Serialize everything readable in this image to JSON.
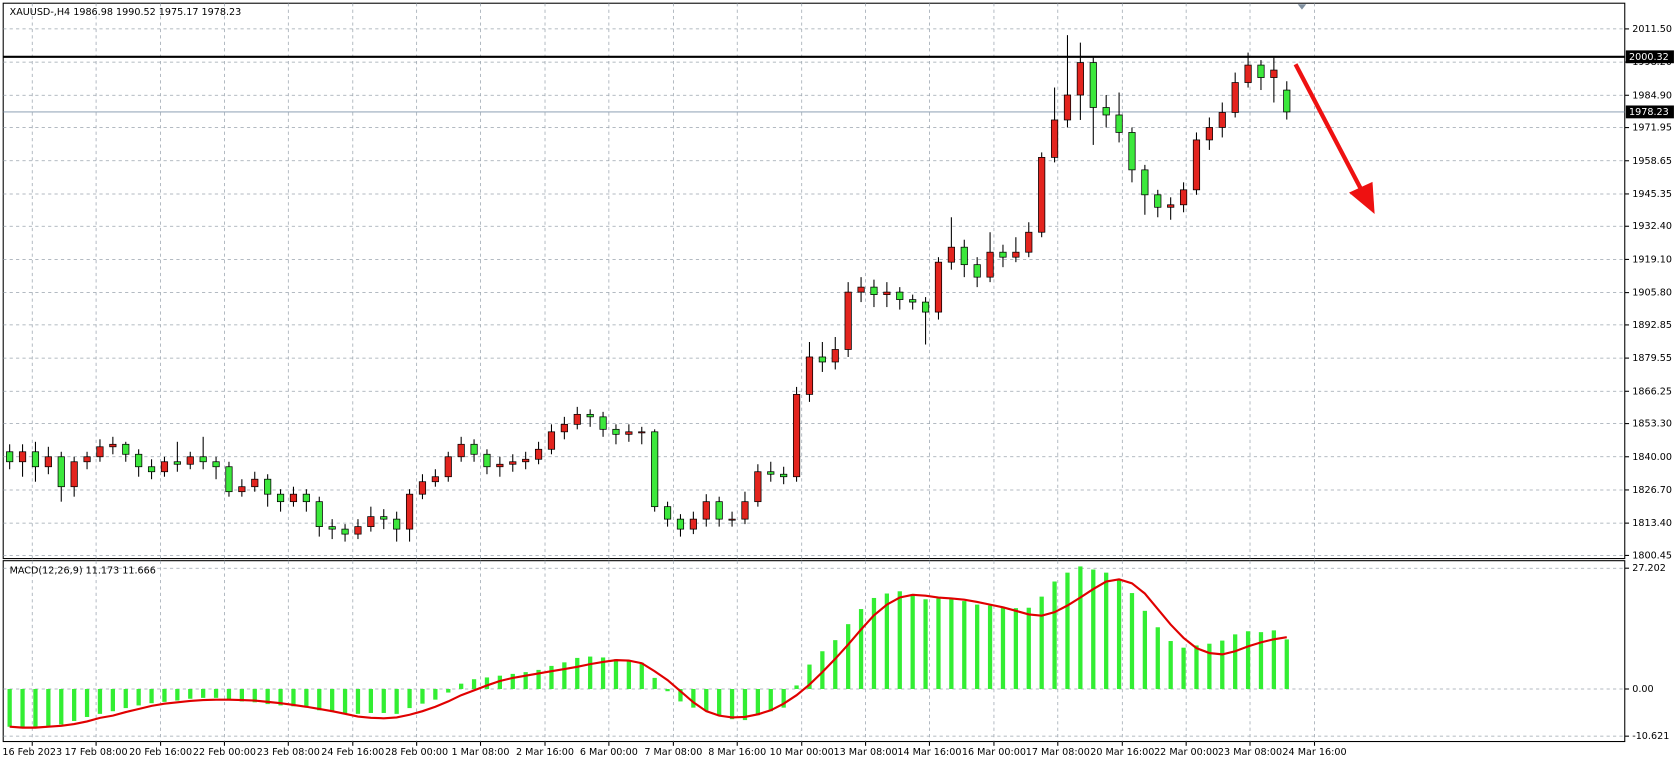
{
  "chart_data": [
    {
      "type": "candlestick",
      "title": "XAUUSD-,H4  1986.98 1990.52 1975.17 1978.23",
      "open": [
        1842,
        1838,
        1842,
        1836,
        1840,
        1828,
        1838,
        1840,
        1844,
        1845,
        1841,
        1836,
        1834,
        1838,
        1837,
        1840,
        1838,
        1836,
        1826,
        1828,
        1831,
        1825,
        1822,
        1825,
        1822,
        1812,
        1811,
        1809,
        1812,
        1816,
        1815,
        1811,
        1825,
        1830,
        1832,
        1840,
        1845,
        1841,
        1836,
        1837,
        1838,
        1839,
        1843,
        1850,
        1853,
        1857,
        1856,
        1851,
        1849,
        1850,
        1850,
        1820,
        1815,
        1811,
        1815,
        1822,
        1815,
        1815,
        1822,
        1834,
        1833,
        1832,
        1865,
        1880,
        1878,
        1883,
        1906,
        1908,
        1905,
        1906,
        1903,
        1902,
        1898,
        1918,
        1924,
        1917,
        1912,
        1922,
        1920,
        1922,
        1930,
        1960,
        1975,
        1985,
        1998,
        1980,
        1977,
        1970,
        1955,
        1945,
        1940,
        1941,
        1947,
        1967,
        1972,
        1978,
        1990,
        1997,
        1992,
        1986.98
      ],
      "high": [
        1845,
        1845,
        1846,
        1844,
        1842,
        1840,
        1842,
        1847,
        1848,
        1846,
        1843,
        1839,
        1840,
        1846,
        1842,
        1848,
        1840,
        1838,
        1831,
        1834,
        1833,
        1827,
        1828,
        1827,
        1824,
        1815,
        1813,
        1815,
        1820,
        1819,
        1818,
        1827,
        1833,
        1835,
        1842,
        1848,
        1847,
        1843,
        1840,
        1841,
        1842,
        1846,
        1853,
        1856,
        1860,
        1859,
        1858,
        1853,
        1853,
        1852,
        1851,
        1822,
        1817,
        1818,
        1825,
        1824,
        1818,
        1826,
        1837,
        1838,
        1836,
        1868,
        1886,
        1886,
        1888,
        1910,
        1912,
        1911,
        1910,
        1908,
        1905,
        1904,
        1920,
        1936,
        1927,
        1920,
        1930,
        1925,
        1928,
        1934,
        1962,
        1988,
        2009,
        2006,
        2000,
        1985,
        1986,
        1972,
        1957,
        1947,
        1944,
        1950,
        1970,
        1976,
        1982,
        1994,
        2002,
        1999,
        2000,
        1990.52
      ],
      "low": [
        1835,
        1832,
        1830,
        1833,
        1822,
        1824,
        1835,
        1838,
        1841,
        1838,
        1832,
        1831,
        1832,
        1834,
        1835,
        1835,
        1831,
        1824,
        1824,
        1826,
        1820,
        1818,
        1820,
        1818,
        1808,
        1807,
        1806,
        1807,
        1810,
        1811,
        1806,
        1806,
        1823,
        1828,
        1830,
        1838,
        1838,
        1833,
        1832,
        1834,
        1835,
        1837,
        1841,
        1847,
        1851,
        1852,
        1848,
        1845,
        1846,
        1845,
        1818,
        1812,
        1808,
        1809,
        1812,
        1812,
        1812,
        1813,
        1820,
        1830,
        1829,
        1830,
        1862,
        1874,
        1875,
        1880,
        1902,
        1900,
        1900,
        1899,
        1899,
        1885,
        1895,
        1915,
        1912,
        1908,
        1910,
        1916,
        1918,
        1920,
        1928,
        1958,
        1972,
        1975,
        1965,
        1972,
        1966,
        1950,
        1937,
        1936,
        1935,
        1938,
        1945,
        1963,
        1968,
        1976,
        1988,
        1987,
        1982,
        1975.17
      ],
      "close": [
        1838,
        1842,
        1836,
        1840,
        1828,
        1838,
        1840,
        1844,
        1845,
        1841,
        1836,
        1834,
        1838,
        1837,
        1840,
        1838,
        1836,
        1826,
        1828,
        1831,
        1825,
        1822,
        1825,
        1822,
        1812,
        1811,
        1809,
        1812,
        1816,
        1815,
        1811,
        1825,
        1830,
        1832,
        1840,
        1845,
        1841,
        1836,
        1837,
        1838,
        1839,
        1843,
        1850,
        1853,
        1857,
        1856,
        1851,
        1849,
        1850,
        1850,
        1820,
        1815,
        1811,
        1815,
        1822,
        1815,
        1815,
        1822,
        1834,
        1833,
        1832,
        1865,
        1880,
        1878,
        1883,
        1906,
        1908,
        1905,
        1906,
        1903,
        1902,
        1898,
        1918,
        1924,
        1917,
        1912,
        1922,
        1920,
        1922,
        1930,
        1960,
        1975,
        1985,
        1998,
        1980,
        1977,
        1970,
        1955,
        1945,
        1940,
        1941,
        1947,
        1967,
        1972,
        1978,
        1990,
        1997,
        1992,
        1995,
        1978.23
      ],
      "up_color": "#e3241e",
      "down_color": "#3ce83c",
      "xlim": [
        -0.5,
        125.2
      ],
      "xticks": [
        {
          "value": 1.75,
          "label": "16 Feb 2023"
        },
        {
          "value": 6.7,
          "label": "17 Feb 08:00"
        },
        {
          "value": 11.7,
          "label": "20 Feb 16:00"
        },
        {
          "value": 16.65,
          "label": "22 Feb 00:00"
        },
        {
          "value": 21.6,
          "label": "23 Feb 08:00"
        },
        {
          "value": 26.6,
          "label": "24 Feb 16:00"
        },
        {
          "value": 31.55,
          "label": "28 Feb 00:00"
        },
        {
          "value": 36.5,
          "label": "1 Mar 08:00"
        },
        {
          "value": 41.5,
          "label": "2 Mar 16:00"
        },
        {
          "value": 46.45,
          "label": "6 Mar 00:00"
        },
        {
          "value": 51.45,
          "label": "7 Mar 08:00"
        },
        {
          "value": 56.4,
          "label": "8 Mar 16:00"
        },
        {
          "value": 61.4,
          "label": "10 Mar 00:00"
        },
        {
          "value": 66.35,
          "label": "13 Mar 08:00"
        },
        {
          "value": 71.3,
          "label": "14 Mar 16:00"
        },
        {
          "value": 76.3,
          "label": "16 Mar 00:00"
        },
        {
          "value": 81.25,
          "label": "17 Mar 08:00"
        },
        {
          "value": 86.25,
          "label": "20 Mar 16:00"
        },
        {
          "value": 91.2,
          "label": "22 Mar 00:00"
        },
        {
          "value": 96.15,
          "label": "23 Mar 08:00"
        },
        {
          "value": 101.15,
          "label": "24 Mar 16:00"
        }
      ],
      "ylim": [
        1799.2,
        2021.8
      ],
      "yticks": [
        {
          "value": 2011.5,
          "label": "2011.50"
        },
        {
          "value": 1998.2,
          "label": "1998.20"
        },
        {
          "value": 1984.9,
          "label": "1984.90"
        },
        1971.95,
        1958.65,
        1945.35,
        {
          "value": 1932.4,
          "label": "1932.40"
        },
        {
          "value": 1919.1,
          "label": "1919.10"
        },
        {
          "value": 1905.8,
          "label": "1905.80"
        },
        1892.85,
        1879.55,
        1866.25,
        {
          "value": 1853.3,
          "label": "1853.30"
        },
        {
          "value": 1840,
          "label": "1840.00"
        },
        {
          "value": 1826.7,
          "label": "1826.70"
        },
        {
          "value": 1813.4,
          "label": "1813.40"
        },
        1800.45
      ],
      "hlines": [
        {
          "value": 2000.32,
          "color": "#000000"
        },
        {
          "value": 1978.23,
          "color": "#7d93aa"
        }
      ],
      "grid": true
    },
    {
      "type": "macd",
      "title": "MACD(12,26,9) 11.173 11.666",
      "histogram": {
        "color": "#33ee33",
        "values": [
          -8.5,
          -8.7,
          -8.6,
          -8.3,
          -8,
          -7.2,
          -6.3,
          -5.6,
          -5,
          -4.3,
          -3.7,
          -3.2,
          -2.9,
          -2.6,
          -2.2,
          -2,
          -2,
          -2.5,
          -2.8,
          -3,
          -3.4,
          -3.7,
          -3.9,
          -4.1,
          -4.8,
          -5.2,
          -5.6,
          -5.6,
          -5.4,
          -5.4,
          -5.6,
          -4.3,
          -3.3,
          -2.4,
          -0.8,
          1.2,
          2.2,
          2.6,
          3,
          3.4,
          3.8,
          4.3,
          5.2,
          6,
          7,
          7.3,
          7.1,
          6.7,
          6.2,
          5.9,
          2.5,
          -0.5,
          -2.8,
          -4.2,
          -4.9,
          -6,
          -6.8,
          -7,
          -5.9,
          -5,
          -4.2,
          0.8,
          5.5,
          8.5,
          11,
          14.6,
          18,
          20.5,
          21.5,
          22,
          21.4,
          20.2,
          20.4,
          20.5,
          19.8,
          19,
          18.8,
          18.5,
          18.2,
          18.3,
          20.8,
          24.2,
          26.2,
          27.6,
          26.9,
          26.2,
          24.8,
          21.6,
          17.6,
          13.9,
          10.8,
          9.3,
          9.8,
          10.2,
          10.9,
          12.3,
          13,
          12.8,
          13.2,
          11.173
        ]
      },
      "signal": {
        "color": "#e00000",
        "values": [
          -8.5,
          -8.7,
          -8.7,
          -8.5,
          -8.3,
          -7.9,
          -7.3,
          -6.5,
          -6,
          -5.2,
          -4.5,
          -3.8,
          -3.3,
          -3,
          -2.7,
          -2.5,
          -2.4,
          -2.4,
          -2.5,
          -2.6,
          -2.9,
          -3.2,
          -3.6,
          -4,
          -4.5,
          -5,
          -5.6,
          -6.2,
          -6.5,
          -6.6,
          -6.4,
          -5.8,
          -5,
          -4,
          -2.8,
          -1.4,
          -0.3,
          0.8,
          1.8,
          2.5,
          3,
          3.5,
          4,
          4.5,
          5,
          5.6,
          6.1,
          6.5,
          6.4,
          5.8,
          4,
          2,
          -0.5,
          -3,
          -5,
          -6,
          -6.4,
          -6.3,
          -5.7,
          -4.8,
          -3.3,
          -1.4,
          1,
          3.8,
          6.8,
          10,
          13.4,
          16.6,
          19,
          20.6,
          21.2,
          21,
          20.6,
          20.4,
          20.1,
          19.6,
          19,
          18.4,
          17.6,
          16.8,
          16.5,
          17.3,
          18.8,
          20.6,
          22.5,
          24.2,
          24.7,
          23.8,
          21.5,
          18,
          14.5,
          11.5,
          9.2,
          8.1,
          7.8,
          8.5,
          9.6,
          10.5,
          11.2,
          11.666
        ]
      },
      "ylim": [
        -11.83,
        28.89
      ],
      "yticks": [
        27.202,
        {
          "value": 0,
          "label": "0.00"
        },
        -10.621
      ],
      "grid": true
    }
  ]
}
